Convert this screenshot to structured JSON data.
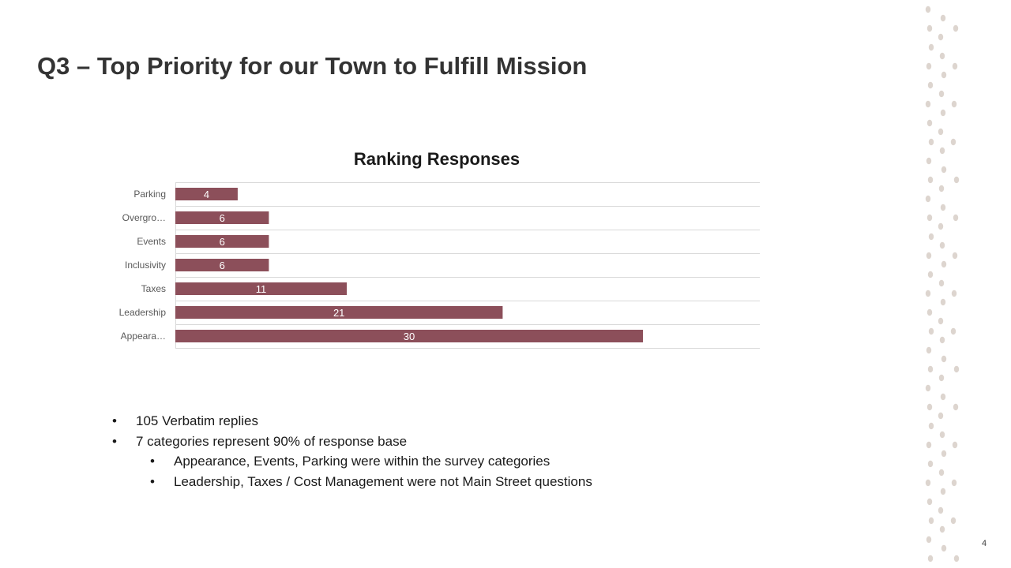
{
  "slide": {
    "title": "Q3 – Top Priority for our Town to Fulfill Mission",
    "page_number": "4"
  },
  "bullets": [
    {
      "text": "105 Verbatim replies",
      "level": 1
    },
    {
      "text": "7 categories represent  90% of response  base",
      "level": 1
    },
    {
      "text": "Appearance,  Events,  Parking were within the survey categories",
      "level": 2
    },
    {
      "text": "Leadership,  Taxes / Cost Management were not Main Street questions",
      "level": 2
    }
  ],
  "colors": {
    "bar": "#8c4f5a",
    "gridline": "#d9d9d9",
    "decor_dots": "#ddd5cf"
  },
  "chart_data": {
    "type": "bar",
    "orientation": "horizontal",
    "title": "Ranking Responses",
    "categories": [
      "Parking",
      "Overgro…",
      "Events",
      "Inclusivity",
      "Taxes",
      "Leadership",
      "Appeara…"
    ],
    "values": [
      4,
      6,
      6,
      6,
      11,
      21,
      30
    ],
    "data_labels": [
      "4",
      "6",
      "6",
      "6",
      "11",
      "21",
      "30"
    ],
    "xlim": [
      0,
      37.5
    ],
    "xlabel": "",
    "ylabel": "",
    "grid": true,
    "legend": "none"
  }
}
